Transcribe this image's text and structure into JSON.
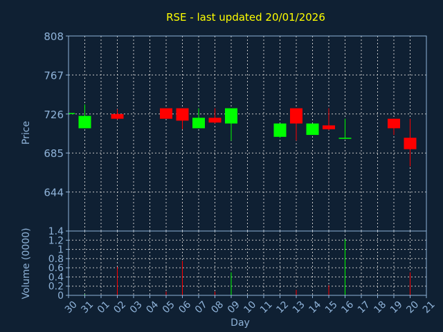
{
  "colors": {
    "background": "#0f2033",
    "text": "#8fb3d9",
    "title": "#ffff00",
    "up": "#00ff00",
    "down": "#ff0000",
    "grid": "#c8c8c8"
  },
  "chart_data": [
    {
      "type": "candlestick",
      "title": "RSE - last updated 20/01/2026",
      "ylabel": "Price",
      "ylim": [
        603,
        808
      ],
      "yticks": [
        "808",
        "767",
        "726",
        "685",
        "644"
      ],
      "ytick_values": [
        808,
        767,
        726,
        685,
        644
      ],
      "grid": true,
      "candles": [
        {
          "day": "30",
          "open": 726,
          "high": 727,
          "low": 725,
          "close": 727
        },
        {
          "day": "31",
          "open": 711,
          "high": 736,
          "low": 711,
          "close": 724
        },
        {
          "day": "02",
          "open": 726,
          "high": 731,
          "low": 720,
          "close": 721
        },
        {
          "day": "05",
          "open": 732,
          "high": 732,
          "low": 721,
          "close": 721
        },
        {
          "day": "06",
          "open": 732,
          "high": 732,
          "low": 710,
          "close": 719
        },
        {
          "day": "07",
          "open": 711,
          "high": 732,
          "low": 711,
          "close": 722
        },
        {
          "day": "08",
          "open": 722,
          "high": 732,
          "low": 716,
          "close": 717
        },
        {
          "day": "09",
          "open": 716,
          "high": 732,
          "low": 698,
          "close": 732
        },
        {
          "day": "12",
          "open": 702,
          "high": 716,
          "low": 701,
          "close": 716
        },
        {
          "day": "13",
          "open": 732,
          "high": 732,
          "low": 698,
          "close": 716
        },
        {
          "day": "14",
          "open": 704,
          "high": 716,
          "low": 704,
          "close": 716
        },
        {
          "day": "15",
          "open": 714,
          "high": 732,
          "low": 709,
          "close": 710
        },
        {
          "day": "16",
          "open": 700,
          "high": 721,
          "low": 700,
          "close": 701
        },
        {
          "day": "19",
          "open": 721,
          "high": 721,
          "low": 704,
          "close": 711
        },
        {
          "day": "20",
          "open": 701,
          "high": 721,
          "low": 671,
          "close": 689
        }
      ]
    },
    {
      "type": "bar",
      "ylabel": "Volume (0000)",
      "xlabel": "Day",
      "ylim": [
        0,
        1.4
      ],
      "yticks": [
        "1.4",
        "1.2",
        "1",
        "0.8",
        "0.6",
        "0.4",
        "0.2",
        "0"
      ],
      "ytick_values": [
        1.4,
        1.2,
        1.0,
        0.8,
        0.6,
        0.4,
        0.2,
        0
      ],
      "categories": [
        "30",
        "31",
        "01",
        "02",
        "03",
        "04",
        "05",
        "06",
        "07",
        "08",
        "09",
        "10",
        "11",
        "12",
        "13",
        "14",
        "15",
        "16",
        "17",
        "18",
        "19",
        "20",
        "21"
      ],
      "bars": [
        {
          "day": "31",
          "value": 0.02,
          "direction": "up"
        },
        {
          "day": "02",
          "value": 0.62,
          "direction": "down"
        },
        {
          "day": "05",
          "value": 0.08,
          "direction": "down"
        },
        {
          "day": "06",
          "value": 0.75,
          "direction": "down"
        },
        {
          "day": "08",
          "value": 0.08,
          "direction": "down"
        },
        {
          "day": "09",
          "value": 0.5,
          "direction": "up"
        },
        {
          "day": "13",
          "value": 0.12,
          "direction": "down"
        },
        {
          "day": "15",
          "value": 0.22,
          "direction": "down"
        },
        {
          "day": "16",
          "value": 1.22,
          "direction": "up"
        },
        {
          "day": "20",
          "value": 0.5,
          "direction": "down"
        }
      ]
    }
  ]
}
